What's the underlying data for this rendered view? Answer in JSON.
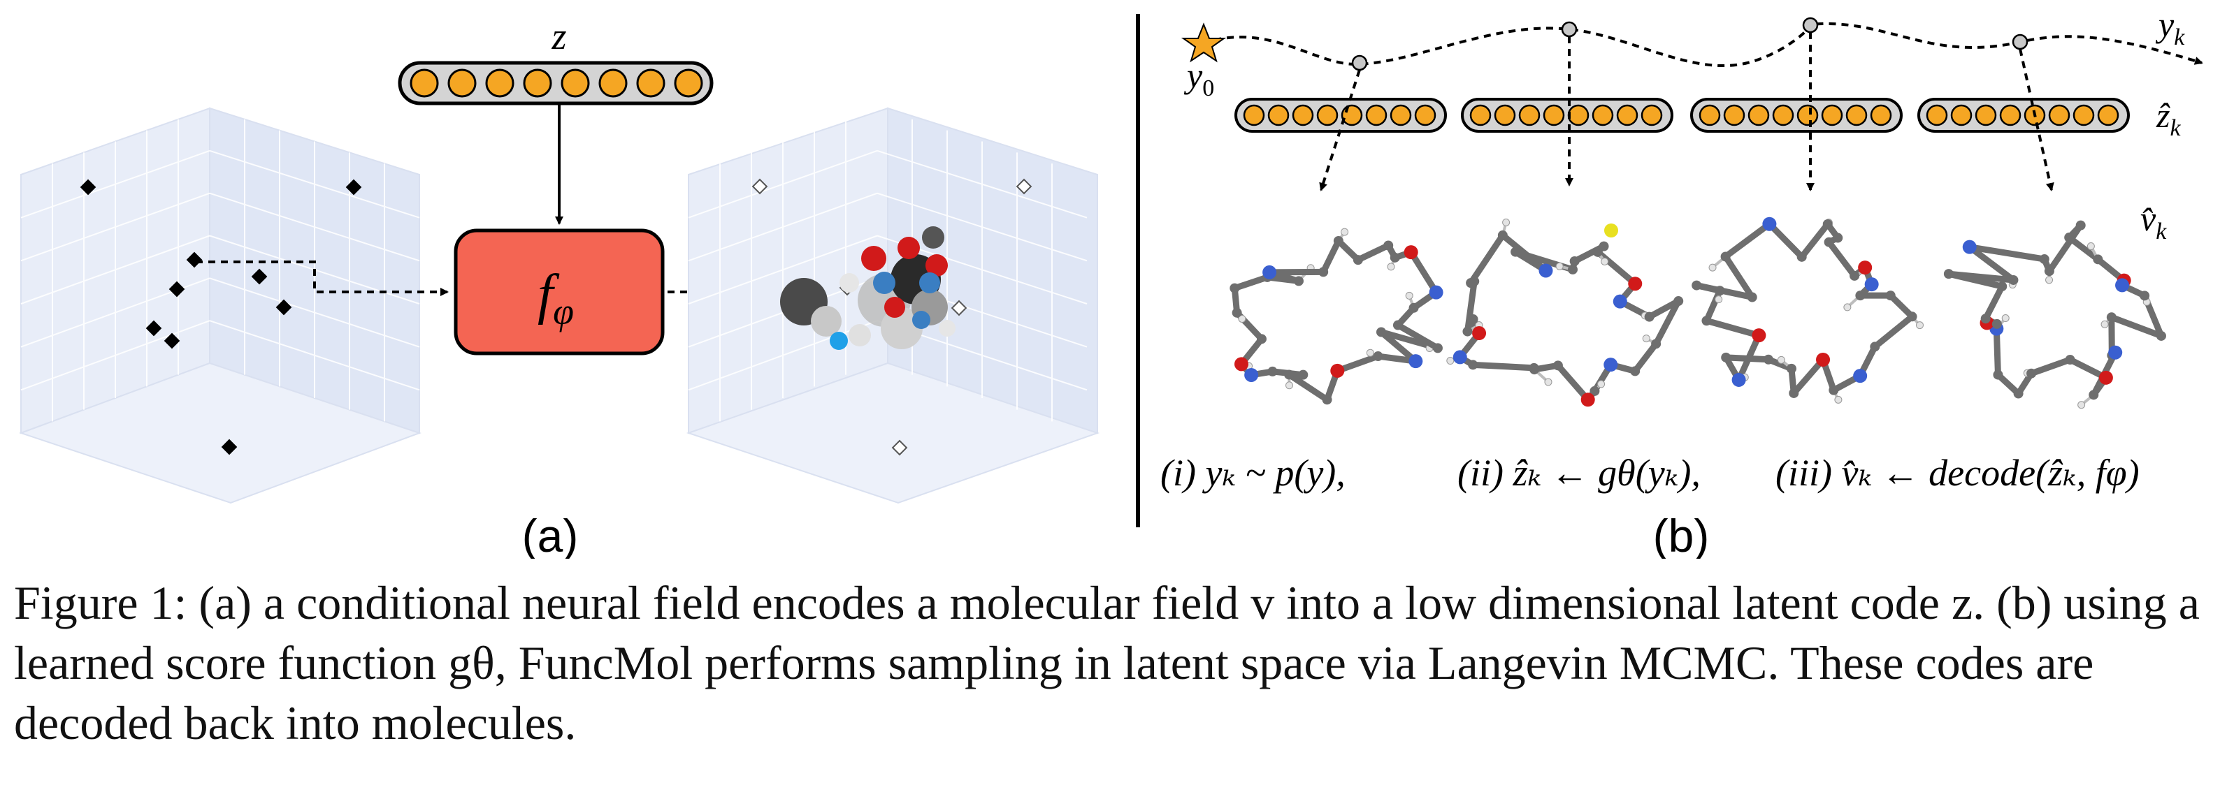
{
  "panel_a": {
    "latent_label": "z",
    "network_label": "f",
    "network_subscript": "φ",
    "sublabel": "(a)"
  },
  "panel_b": {
    "y0_label": "y",
    "y0_sub": "0",
    "yk_label": "y",
    "yk_sub": "k",
    "zhat_label": "ẑ",
    "zhat_sub": "k",
    "vhat_label": "v̂",
    "vhat_sub": "k",
    "step_i": "(i) yₖ ~ p(y),",
    "step_ii": "(ii) ẑₖ ← gθ(yₖ),",
    "step_iii": "(iii) v̂ₖ ← decode(ẑₖ, fφ)",
    "sublabel": "(b)"
  },
  "caption": {
    "text": "Figure 1: (a) a conditional neural field encodes a molecular field v into a low dimensional latent code z. (b) using a learned score function gθ, FuncMol performs sampling in latent space via Langevin MCMC. These codes are decoded back into molecules."
  },
  "colors": {
    "node_fill": "#f5a623",
    "network_fill": "#f46553",
    "cube_face": "#e7ecf8",
    "grid": "#ffffff",
    "atom_carbon": "#6e6e6e",
    "atom_nitrogen": "#3a5fd0",
    "atom_oxygen": "#d11a1a",
    "atom_sulfur": "#e8e020",
    "atom_hydrogen": "#e4e4e4"
  }
}
